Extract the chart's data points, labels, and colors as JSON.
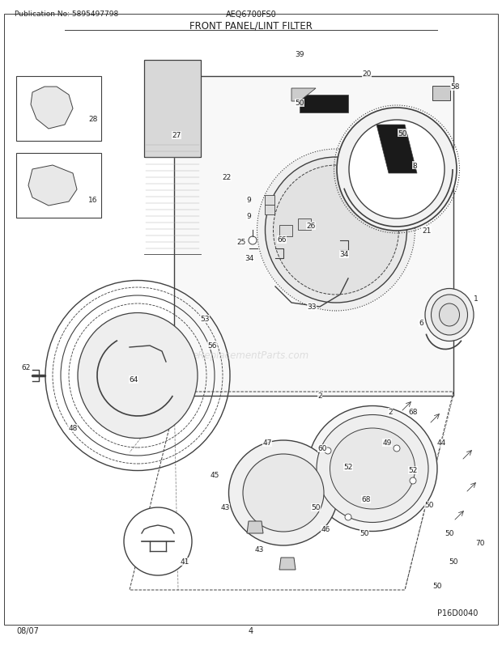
{
  "title": "FRONT PANEL/LINT FILTER",
  "pub_no": "Publication No: 5895497798",
  "model": "AEQ6700FS0",
  "date": "08/07",
  "page": "4",
  "part_code": "P16D0040",
  "bg_color": "#ffffff",
  "line_color": "#404040",
  "text_color": "#222222",
  "watermark": "eReplacementParts.com",
  "fig_w": 6.2,
  "fig_h": 8.03,
  "dpi": 100
}
